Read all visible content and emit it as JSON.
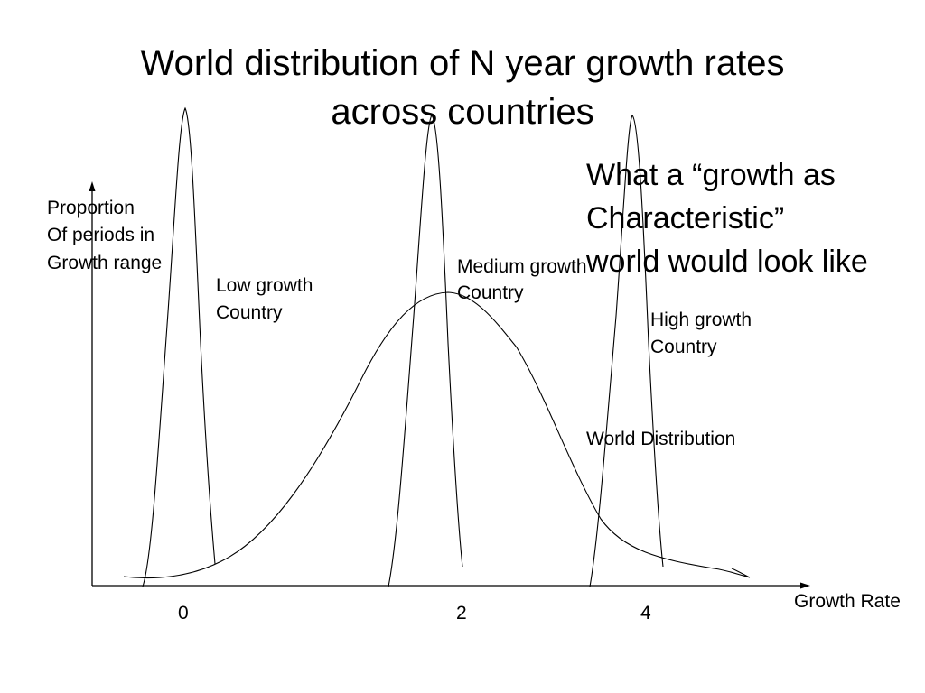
{
  "title": {
    "line1": "World distribution of N year growth rates",
    "line2": "across countries"
  },
  "callout": {
    "line1": "What a “growth as",
    "line2": "Characteristic”",
    "line3": "world would look like"
  },
  "y_axis_label": [
    "Proportion",
    "Of periods in",
    "Growth range"
  ],
  "x_axis_label": "Growth Rate",
  "x_ticks": [
    "0",
    "2",
    "4"
  ],
  "curve_labels": {
    "low": [
      "Low growth",
      "Country"
    ],
    "medium": [
      "Medium growth",
      "Country"
    ],
    "high": [
      "High growth",
      "Country"
    ],
    "world": "World Distribution"
  }
}
